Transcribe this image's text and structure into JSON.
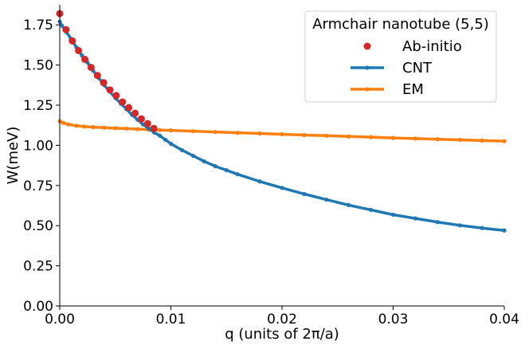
{
  "chart_data": {
    "type": "line",
    "title": "",
    "xlabel": "q (units of 2π/a)",
    "ylabel": "W(meV)",
    "xlim": [
      0,
      0.04
    ],
    "ylim": [
      0,
      1.875
    ],
    "x_ticks": [
      "0.00",
      "0.01",
      "0.02",
      "0.03",
      "0.04"
    ],
    "x_tick_values": [
      0,
      0.01,
      0.02,
      0.03,
      0.04
    ],
    "y_ticks": [
      "0.00",
      "0.25",
      "0.50",
      "0.75",
      "1.00",
      "1.25",
      "1.50",
      "1.75"
    ],
    "y_tick_values": [
      0,
      0.25,
      0.5,
      0.75,
      1.0,
      1.25,
      1.5,
      1.75
    ],
    "grid": false,
    "legend": {
      "title": "Armchair nanotube (5,5)",
      "placement": "top-right"
    },
    "series": [
      {
        "name": "Ab-initio",
        "style": "scatter",
        "color": "#d62728",
        "x": [
          0.0,
          0.00056,
          0.00113,
          0.00169,
          0.00226,
          0.00282,
          0.00339,
          0.00395,
          0.00452,
          0.00508,
          0.00565,
          0.00621,
          0.00678,
          0.00734,
          0.00791,
          0.00847
        ],
        "y": [
          1.82,
          1.72,
          1.65,
          1.59,
          1.535,
          1.485,
          1.435,
          1.39,
          1.345,
          1.31,
          1.27,
          1.235,
          1.2,
          1.165,
          1.135,
          1.105
        ]
      },
      {
        "name": "CNT",
        "style": "line",
        "color": "#1f77b4",
        "x": [
          0.0,
          0.0002,
          0.0006,
          0.001,
          0.0015,
          0.002,
          0.0025,
          0.003,
          0.0035,
          0.004,
          0.0045,
          0.005,
          0.0055,
          0.006,
          0.0065,
          0.007,
          0.0075,
          0.008,
          0.0085,
          0.009,
          0.0095,
          0.01,
          0.011,
          0.012,
          0.013,
          0.014,
          0.015,
          0.016,
          0.018,
          0.02,
          0.022,
          0.024,
          0.026,
          0.028,
          0.03,
          0.032,
          0.034,
          0.036,
          0.038,
          0.04
        ],
        "y": [
          1.77,
          1.745,
          1.705,
          1.665,
          1.61,
          1.56,
          1.515,
          1.465,
          1.42,
          1.375,
          1.335,
          1.295,
          1.26,
          1.225,
          1.19,
          1.16,
          1.13,
          1.105,
          1.08,
          1.06,
          1.035,
          1.01,
          0.97,
          0.935,
          0.9,
          0.87,
          0.845,
          0.82,
          0.775,
          0.735,
          0.697,
          0.662,
          0.628,
          0.598,
          0.568,
          0.545,
          0.522,
          0.502,
          0.485,
          0.47
        ]
      },
      {
        "name": "EM",
        "style": "line",
        "color": "#ff7f0e",
        "x": [
          0.0,
          0.0003,
          0.0008,
          0.0015,
          0.0022,
          0.003,
          0.004,
          0.005,
          0.006,
          0.007,
          0.008,
          0.009,
          0.01,
          0.012,
          0.014,
          0.016,
          0.018,
          0.02,
          0.022,
          0.024,
          0.026,
          0.028,
          0.03,
          0.032,
          0.034,
          0.036,
          0.038,
          0.04
        ],
        "y": [
          1.15,
          1.14,
          1.13,
          1.122,
          1.117,
          1.113,
          1.11,
          1.107,
          1.104,
          1.101,
          1.098,
          1.095,
          1.093,
          1.088,
          1.083,
          1.078,
          1.074,
          1.069,
          1.064,
          1.06,
          1.055,
          1.051,
          1.046,
          1.042,
          1.038,
          1.034,
          1.03,
          1.026
        ]
      }
    ]
  }
}
